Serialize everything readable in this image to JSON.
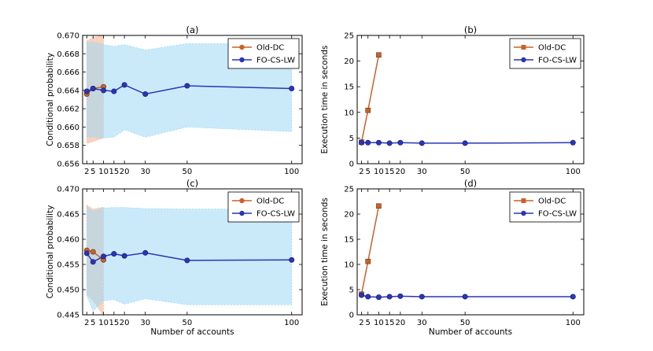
{
  "figure": {
    "xlabel": "Number of accounts",
    "colors": {
      "old_dc": "#c8622a",
      "fo_cs_lw": "#2b35b5",
      "old_dc_band": "#f7c4a8",
      "fo_cs_lw_band": "#9fd8f5"
    }
  },
  "chart_data": [
    {
      "panel": "a",
      "type": "line",
      "title": "(a)",
      "xlabel": "",
      "ylabel": "Conditional probability",
      "xlim": [
        0,
        105
      ],
      "ylim": [
        0.656,
        0.67
      ],
      "xticks": [
        2,
        5,
        10,
        15,
        20,
        30,
        50,
        100
      ],
      "yticks": [
        "0.656",
        "0.658",
        "0.660",
        "0.662",
        "0.664",
        "0.666",
        "0.668",
        "0.670"
      ],
      "legend": "top-right",
      "series": [
        {
          "name": "Old-DC",
          "marker": "circle",
          "x": [
            2,
            5,
            10
          ],
          "y": [
            0.6636,
            0.6642,
            0.6644
          ],
          "band_lower": [
            0.6582,
            0.6584,
            0.6588
          ],
          "band_upper": [
            0.6694,
            0.6698,
            0.67
          ]
        },
        {
          "name": "FO-CS-LW",
          "marker": "circle",
          "x": [
            2,
            5,
            10,
            15,
            20,
            30,
            50,
            100
          ],
          "y": [
            0.6639,
            0.6642,
            0.664,
            0.6639,
            0.6646,
            0.6636,
            0.6645,
            0.6642
          ],
          "band_lower": [
            0.6589,
            0.6589,
            0.6588,
            0.6589,
            0.6597,
            0.6589,
            0.66,
            0.6595
          ],
          "band_upper": [
            0.6692,
            0.6693,
            0.669,
            0.6688,
            0.669,
            0.6684,
            0.6691,
            0.6691
          ]
        }
      ]
    },
    {
      "panel": "b",
      "type": "line",
      "title": "(b)",
      "xlabel": "",
      "ylabel": "Execution time in seconds",
      "xlim": [
        0,
        105
      ],
      "ylim": [
        0,
        25
      ],
      "xticks": [
        2,
        5,
        10,
        15,
        20,
        30,
        50,
        100
      ],
      "yticks": [
        "0",
        "5",
        "10",
        "15",
        "20",
        "25"
      ],
      "legend": "top-right",
      "series": [
        {
          "name": "Old-DC",
          "marker": "square",
          "x": [
            2,
            5,
            10
          ],
          "y": [
            4.2,
            10.4,
            21.2
          ]
        },
        {
          "name": "FO-CS-LW",
          "marker": "circle",
          "x": [
            2,
            5,
            10,
            15,
            20,
            30,
            50,
            100
          ],
          "y": [
            4.1,
            4.1,
            4.1,
            4.0,
            4.1,
            4.0,
            4.0,
            4.1
          ]
        }
      ]
    },
    {
      "panel": "c",
      "type": "line",
      "title": "(c)",
      "xlabel": "Number of accounts",
      "ylabel": "Conditional probability",
      "xlim": [
        0,
        105
      ],
      "ylim": [
        0.445,
        0.47
      ],
      "xticks": [
        2,
        5,
        10,
        15,
        20,
        30,
        50,
        100
      ],
      "yticks": [
        "0.445",
        "0.450",
        "0.455",
        "0.460",
        "0.465",
        "0.470"
      ],
      "legend": "top-right",
      "series": [
        {
          "name": "Old-DC",
          "marker": "circle",
          "x": [
            2,
            5,
            10
          ],
          "y": [
            0.4578,
            0.4575,
            0.4559
          ],
          "band_lower": [
            0.449,
            0.4478,
            0.4448
          ],
          "band_upper": [
            0.4668,
            0.466,
            0.4664
          ]
        },
        {
          "name": "FO-CS-LW",
          "marker": "circle",
          "x": [
            2,
            5,
            10,
            15,
            20,
            30,
            50,
            100
          ],
          "y": [
            0.4572,
            0.4555,
            0.4566,
            0.4571,
            0.4567,
            0.4573,
            0.4558,
            0.4559
          ],
          "band_lower": [
            0.4488,
            0.4458,
            0.4478,
            0.448,
            0.4471,
            0.4482,
            0.447,
            0.447
          ],
          "band_upper": [
            0.4664,
            0.4656,
            0.4662,
            0.4663,
            0.4663,
            0.4661,
            0.466,
            0.466
          ]
        }
      ]
    },
    {
      "panel": "d",
      "type": "line",
      "title": "(d)",
      "xlabel": "Number of accounts",
      "ylabel": "Execution time in seconds",
      "xlim": [
        0,
        105
      ],
      "ylim": [
        0,
        25
      ],
      "xticks": [
        2,
        5,
        10,
        15,
        20,
        30,
        50,
        100
      ],
      "yticks": [
        "0",
        "5",
        "10",
        "15",
        "20",
        "25"
      ],
      "legend": "top-right",
      "series": [
        {
          "name": "Old-DC",
          "marker": "square",
          "x": [
            2,
            5,
            10
          ],
          "y": [
            4.1,
            10.6,
            21.6
          ]
        },
        {
          "name": "FO-CS-LW",
          "marker": "circle",
          "x": [
            2,
            5,
            10,
            15,
            20,
            30,
            50,
            100
          ],
          "y": [
            3.9,
            3.6,
            3.5,
            3.6,
            3.7,
            3.6,
            3.6,
            3.6
          ]
        }
      ]
    }
  ]
}
